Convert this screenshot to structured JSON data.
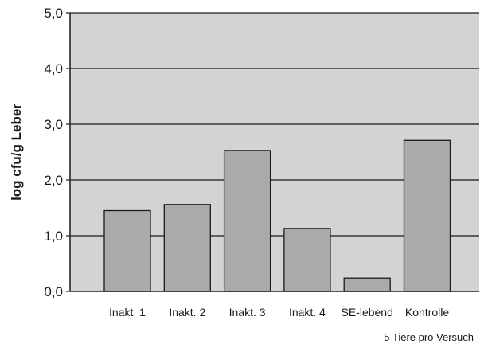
{
  "chart_data": {
    "type": "bar",
    "categories": [
      "Inakt. 1",
      "Inakt. 2",
      "Inakt. 3",
      "Inakt. 4",
      "SE-lebend",
      "Kontrolle"
    ],
    "values": [
      1.45,
      1.56,
      2.53,
      1.13,
      0.24,
      2.71
    ],
    "title": "",
    "xlabel": "",
    "ylabel": "log cfu/g Leber",
    "ylim": [
      0,
      5
    ],
    "yticks": [
      0,
      1,
      2,
      3,
      4,
      5
    ],
    "ytick_labels": [
      "0,0",
      "1,0",
      "2,0",
      "3,0",
      "4,0",
      "5,0"
    ],
    "grid": true,
    "legend": "none",
    "annotation": "5 Tiere pro Versuch",
    "colors": {
      "plot_background": "#d3d3d3",
      "bar_fill": "#aaaaaa",
      "bar_stroke": "#1a1a1a",
      "gridline": "#1a1a1a",
      "text": "#1a1a1a"
    }
  }
}
